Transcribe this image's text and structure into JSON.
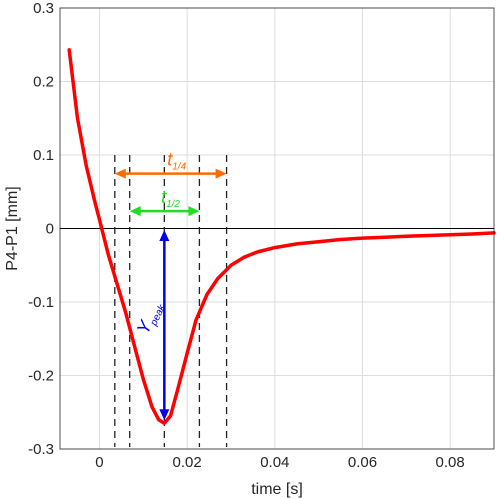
{
  "chart_data": {
    "type": "line",
    "xlabel": "time [s]",
    "ylabel": "P4-P1 [mm]",
    "xlim": [
      -0.009,
      0.09
    ],
    "ylim": [
      -0.3,
      0.3
    ],
    "grid": true,
    "x_ticks": [
      0,
      0.02,
      0.04,
      0.06,
      0.08
    ],
    "x_tick_labels": [
      "0",
      "0.02",
      "0.04",
      "0.06",
      "0.08"
    ],
    "y_ticks": [
      -0.3,
      -0.2,
      -0.1,
      0,
      0.1,
      0.2,
      0.3
    ],
    "y_tick_labels": [
      "-0.3",
      "-0.2",
      "-0.1",
      "0",
      "0.1",
      "0.2",
      "0.3"
    ],
    "zero_line": true,
    "series": [
      {
        "color": "#ff0000",
        "x": [
          -0.0069,
          -0.005,
          -0.003,
          -0.001,
          0.0,
          0.002,
          0.004,
          0.006,
          0.008,
          0.01,
          0.012,
          0.0135,
          0.0148,
          0.0162,
          0.0178,
          0.02,
          0.022,
          0.0245,
          0.027,
          0.03,
          0.033,
          0.036,
          0.04,
          0.045,
          0.05,
          0.055,
          0.06,
          0.065,
          0.07,
          0.075,
          0.08,
          0.085,
          0.09
        ],
        "y": [
          0.243,
          0.15,
          0.085,
          0.035,
          0.012,
          -0.035,
          -0.075,
          -0.115,
          -0.16,
          -0.205,
          -0.243,
          -0.26,
          -0.265,
          -0.255,
          -0.22,
          -0.17,
          -0.125,
          -0.09,
          -0.068,
          -0.05,
          -0.039,
          -0.032,
          -0.026,
          -0.021,
          -0.018,
          -0.015,
          -0.013,
          -0.012,
          -0.0105,
          -0.0095,
          -0.0085,
          -0.0075,
          -0.006
        ]
      }
    ],
    "vlines": [
      0.0035,
      0.0069,
      0.0148,
      0.0228,
      0.029
    ],
    "annotations": [
      {
        "label": "t",
        "sub": "1/4",
        "color": "#ff6a00",
        "x1": 0.0035,
        "x2": 0.029,
        "y": 0.076
      },
      {
        "label": "t",
        "sub": "1/2",
        "color": "#22dd22",
        "x1": 0.0069,
        "x2": 0.0228,
        "y": 0.025
      },
      {
        "label": "Y",
        "sub": "peak",
        "color": "#0000ee",
        "x": 0.0148,
        "y1": -0.265,
        "y2": -0.002
      }
    ]
  }
}
